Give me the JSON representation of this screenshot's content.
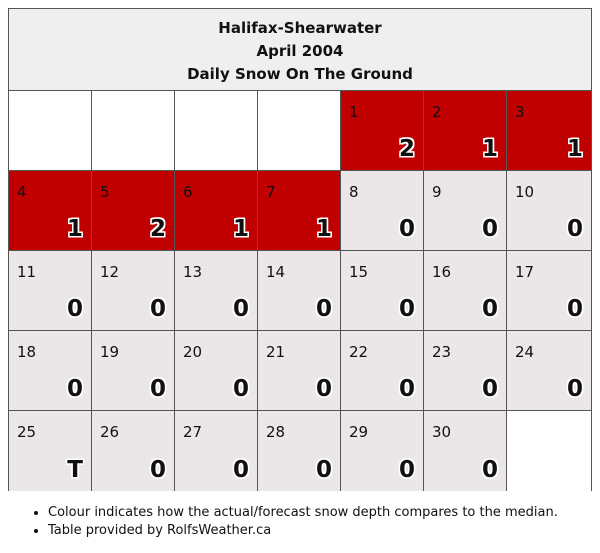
{
  "header": {
    "station": "Halifax-Shearwater",
    "period": "April 2004",
    "metric": "Daily Snow On The Ground"
  },
  "calendar": {
    "leading_blank_days": 4,
    "trailing_blank_days": 1,
    "days": [
      {
        "day": "1",
        "value": "2",
        "category": "above-median"
      },
      {
        "day": "2",
        "value": "1",
        "category": "above-median"
      },
      {
        "day": "3",
        "value": "1",
        "category": "above-median"
      },
      {
        "day": "4",
        "value": "1",
        "category": "above-median"
      },
      {
        "day": "5",
        "value": "2",
        "category": "above-median"
      },
      {
        "day": "6",
        "value": "1",
        "category": "above-median"
      },
      {
        "day": "7",
        "value": "1",
        "category": "above-median"
      },
      {
        "day": "8",
        "value": "0",
        "category": "median"
      },
      {
        "day": "9",
        "value": "0",
        "category": "median"
      },
      {
        "day": "10",
        "value": "0",
        "category": "median"
      },
      {
        "day": "11",
        "value": "0",
        "category": "median"
      },
      {
        "day": "12",
        "value": "0",
        "category": "median"
      },
      {
        "day": "13",
        "value": "0",
        "category": "median"
      },
      {
        "day": "14",
        "value": "0",
        "category": "median"
      },
      {
        "day": "15",
        "value": "0",
        "category": "median"
      },
      {
        "day": "16",
        "value": "0",
        "category": "median"
      },
      {
        "day": "17",
        "value": "0",
        "category": "median"
      },
      {
        "day": "18",
        "value": "0",
        "category": "median"
      },
      {
        "day": "19",
        "value": "0",
        "category": "median"
      },
      {
        "day": "20",
        "value": "0",
        "category": "median"
      },
      {
        "day": "21",
        "value": "0",
        "category": "median"
      },
      {
        "day": "22",
        "value": "0",
        "category": "median"
      },
      {
        "day": "23",
        "value": "0",
        "category": "median"
      },
      {
        "day": "24",
        "value": "0",
        "category": "median"
      },
      {
        "day": "25",
        "value": "T",
        "category": "median"
      },
      {
        "day": "26",
        "value": "0",
        "category": "median"
      },
      {
        "day": "27",
        "value": "0",
        "category": "median"
      },
      {
        "day": "28",
        "value": "0",
        "category": "median"
      },
      {
        "day": "29",
        "value": "0",
        "category": "median"
      },
      {
        "day": "30",
        "value": "0",
        "category": "median"
      }
    ]
  },
  "colors": {
    "above-median": "#c00000",
    "median": "#ebe6e7",
    "blank": "#ffffff"
  },
  "notes": [
    "Colour indicates how the actual/forecast snow depth compares to the median.",
    "Table provided by RolfsWeather.ca"
  ]
}
